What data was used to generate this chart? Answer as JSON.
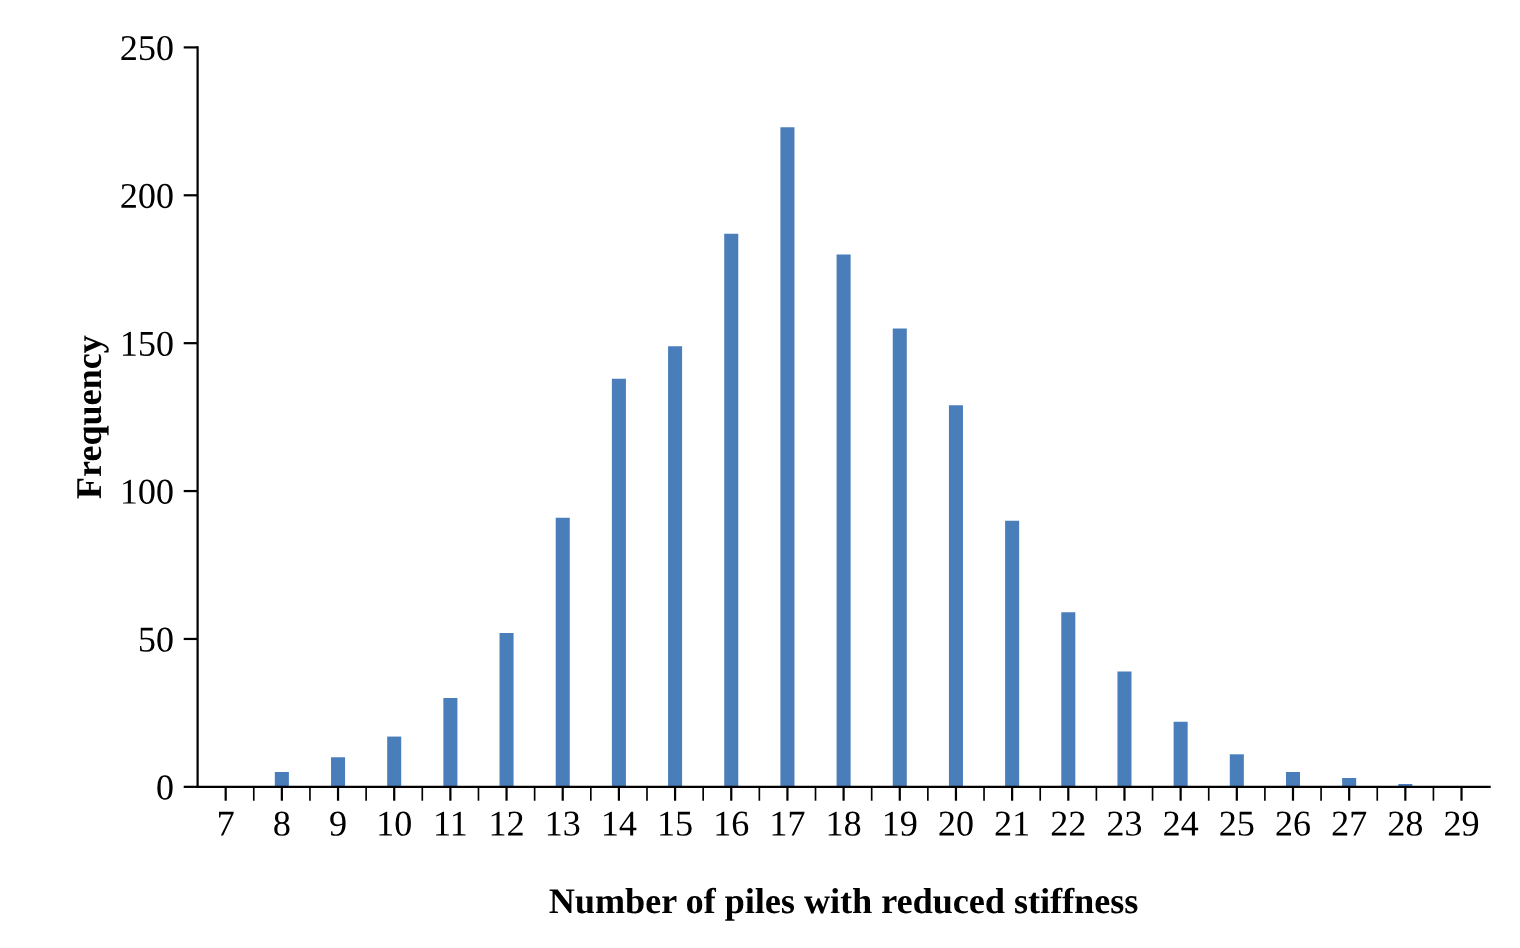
{
  "chart_data": {
    "type": "bar",
    "xlabel": "Number of piles with reduced stiffness",
    "ylabel": "Frequency",
    "categories": [
      "7",
      "8",
      "9",
      "10",
      "11",
      "12",
      "13",
      "14",
      "15",
      "16",
      "17",
      "18",
      "19",
      "20",
      "21",
      "22",
      "23",
      "24",
      "25",
      "26",
      "27",
      "28",
      "29"
    ],
    "values": [
      0,
      5,
      10,
      17,
      30,
      52,
      91,
      138,
      149,
      187,
      223,
      180,
      155,
      129,
      90,
      59,
      39,
      22,
      11,
      5,
      3,
      1,
      0
    ],
    "color": "#4a7ebb",
    "ylim": [
      0,
      250
    ],
    "yticks": [
      0,
      50,
      100,
      150,
      200,
      250
    ],
    "grid": false
  }
}
